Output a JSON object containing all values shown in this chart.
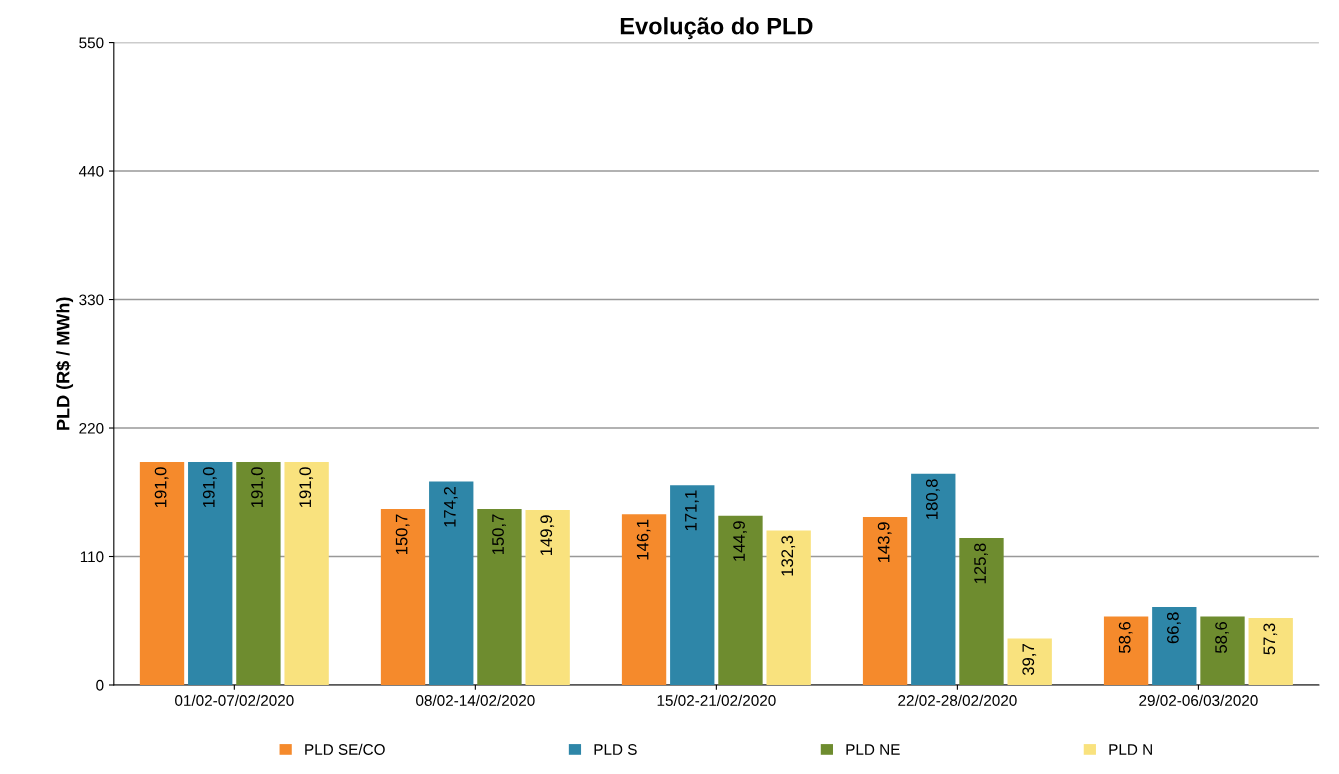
{
  "chart_data": {
    "type": "bar",
    "title": "Evolução do PLD",
    "ylabel": "PLD (R$ / MWh)",
    "categories": [
      "01/02-07/02/2020",
      "08/02-14/02/2020",
      "15/02-21/02/2020",
      "22/02-28/02/2020",
      "29/02-06/03/2020"
    ],
    "series": [
      {
        "name": "PLD SE/CO",
        "color": "#f58a2c",
        "values": [
          191.0,
          150.7,
          146.1,
          143.9,
          58.6
        ],
        "value_labels": [
          "191,0",
          "150,7",
          "146,1",
          "143,9",
          "58,6"
        ]
      },
      {
        "name": "PLD S",
        "color": "#2e86a8",
        "values": [
          191.0,
          174.2,
          171.1,
          180.8,
          66.8
        ],
        "value_labels": [
          "191,0",
          "174,2",
          "171,1",
          "180,8",
          "66,8"
        ]
      },
      {
        "name": "PLD NE",
        "color": "#6e8c2f",
        "values": [
          191.0,
          150.7,
          144.9,
          125.8,
          58.6
        ],
        "value_labels": [
          "191,0",
          "150,7",
          "144,9",
          "125,8",
          "58,6"
        ]
      },
      {
        "name": "PLD N",
        "color": "#f9e27e",
        "values": [
          191.0,
          149.9,
          132.3,
          39.7,
          57.3
        ],
        "value_labels": [
          "191,0",
          "149,9",
          "132,3",
          "39,7",
          "57,3"
        ]
      }
    ],
    "ylim": [
      0,
      550
    ],
    "yticks": [
      0,
      110,
      220,
      330,
      440,
      550
    ],
    "grid": "y",
    "legend": "bottom"
  }
}
